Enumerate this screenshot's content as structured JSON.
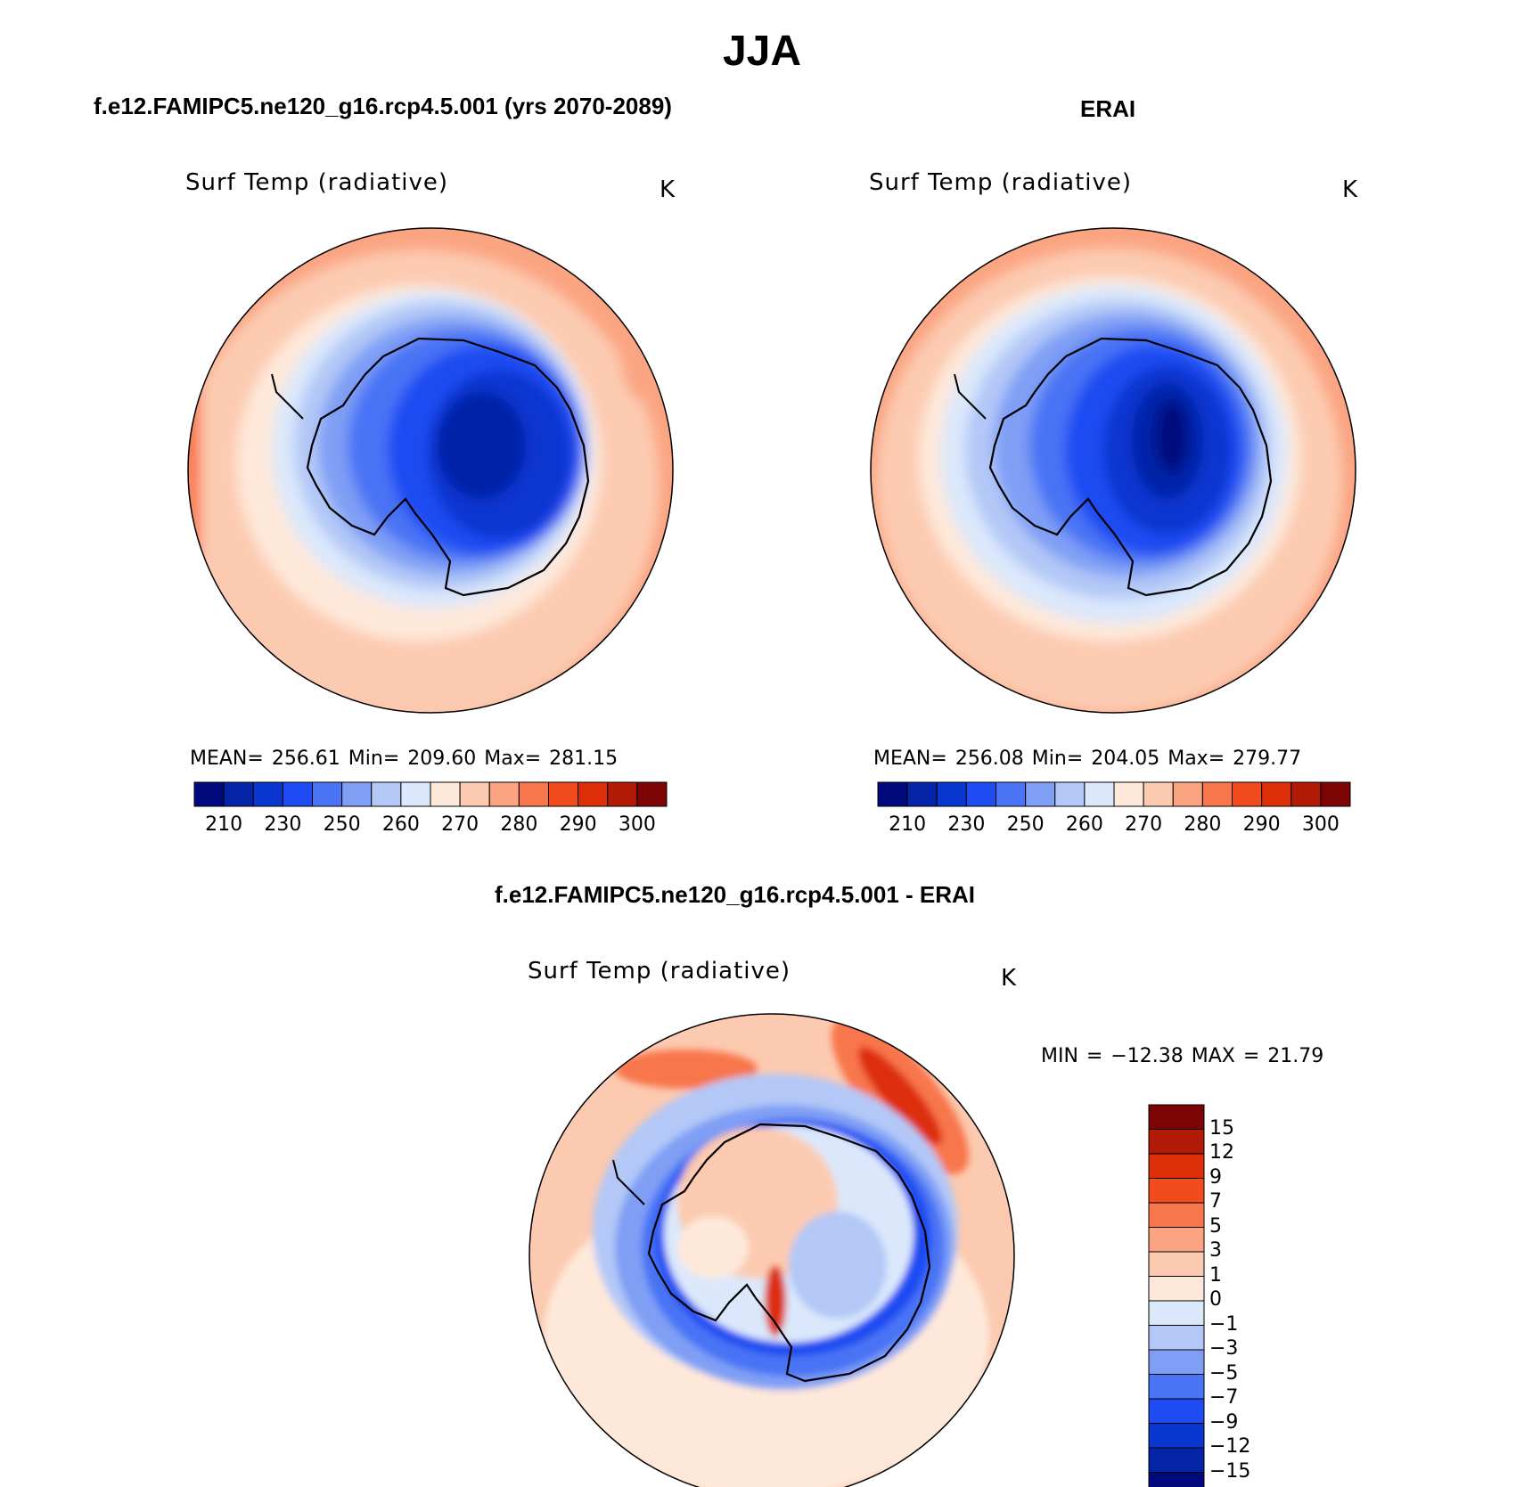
{
  "title": "JJA",
  "colors": {
    "abs_scale": [
      "#000a7d",
      "#0624a8",
      "#0a36d0",
      "#1e4cf2",
      "#4a73f5",
      "#7f9ff5",
      "#b3c8f7",
      "#dbe8fb",
      "#fee8d9",
      "#fccab0",
      "#fba482",
      "#f8764c",
      "#f24b1e",
      "#dd2e0a",
      "#b01a06",
      "#7d0404"
    ],
    "diff_scale": [
      "#000a7d",
      "#0624a8",
      "#0a36d0",
      "#1e4cf2",
      "#4a73f5",
      "#7f9ff5",
      "#b3c8f7",
      "#dbe8fb",
      "#fee8d9",
      "#fccab0",
      "#fba482",
      "#f8764c",
      "#f24b1e",
      "#dd2e0a",
      "#b01a06",
      "#7d0404"
    ]
  },
  "panels": {
    "model": {
      "title": "f.e12.FAMIPC5.ne120_g16.rcp4.5.001 (yrs 2070-2089)",
      "variable": "Surf Temp (radiative)",
      "units": "K",
      "stats": "MEAN= 256.61   Min= 209.60   Max= 281.15",
      "colorbar_ticks": [
        "210",
        "230",
        "250",
        "260",
        "270",
        "280",
        "290",
        "300"
      ]
    },
    "obs": {
      "title": "ERAI",
      "variable": "Surf Temp (radiative)",
      "units": "K",
      "stats": "MEAN= 256.08   Min= 204.05   Max= 279.77",
      "colorbar_ticks": [
        "210",
        "230",
        "250",
        "260",
        "270",
        "280",
        "290",
        "300"
      ]
    },
    "diff": {
      "title": "f.e12.FAMIPC5.ne120_g16.rcp4.5.001 - ERAI",
      "variable": "Surf Temp (radiative)",
      "units": "K",
      "stats": "MIN = −12.38  MAX =   21.79",
      "colorbar_ticks": [
        "15",
        "12",
        "9",
        "7",
        "5",
        "3",
        "1",
        "0",
        "−1",
        "−3",
        "−5",
        "−7",
        "−9",
        "−12",
        "−15"
      ]
    }
  }
}
